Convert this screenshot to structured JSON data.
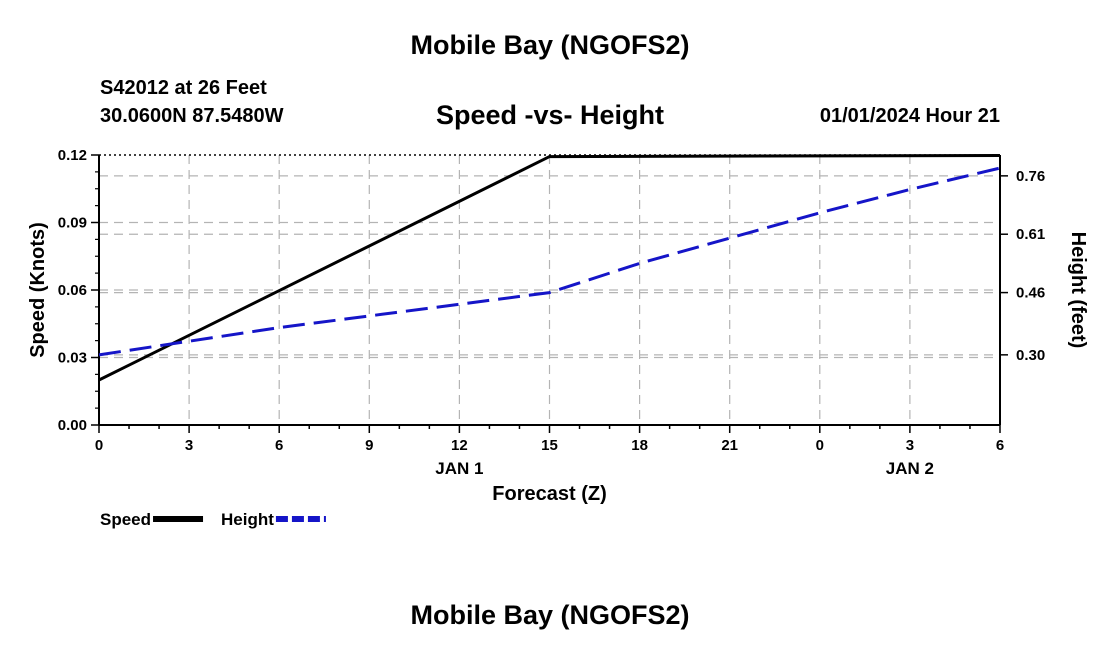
{
  "header": {
    "title": "Mobile Bay (NGOFS2)",
    "station": "S42012 at 26 Feet",
    "coords": "30.0600N  87.5480W",
    "subtitle": "Speed -vs- Height",
    "datetime": "01/01/2024 Hour 21"
  },
  "footer": {
    "title": "Mobile Bay (NGOFS2)"
  },
  "chart_data": {
    "type": "line",
    "title": "Speed -vs- Height",
    "xlabel": "Forecast (Z)",
    "ylabel": "Speed (Knots)",
    "y2label": "Height (feet)",
    "x": [
      0,
      3,
      6,
      9,
      12,
      15,
      18,
      21,
      24,
      27,
      30
    ],
    "x_tick_labels": [
      "0",
      "3",
      "6",
      "9",
      "12",
      "15",
      "18",
      "21",
      "0",
      "3",
      "6"
    ],
    "date_labels": [
      {
        "label": "JAN 1",
        "at_x": 12
      },
      {
        "label": "JAN 2",
        "at_x": 27
      }
    ],
    "xlim": [
      0,
      30
    ],
    "ylim": [
      0,
      0.12
    ],
    "yticks": [
      "0.00",
      "0.03",
      "0.06",
      "0.09",
      "0.12"
    ],
    "y2lim": [
      0.1197,
      0.8136
    ],
    "y2ticks": [
      "0.30",
      "0.46",
      "0.61",
      "0.76"
    ],
    "grid": true,
    "legend_position": "bottom-left",
    "series": [
      {
        "name": "Speed",
        "axis": "left",
        "color": "#000000",
        "style": "solid",
        "x": [
          0,
          15,
          30
        ],
        "values": [
          0.02,
          0.1193,
          0.1198
        ]
      },
      {
        "name": "Height",
        "axis": "right",
        "color": "#1515c8",
        "style": "dashed",
        "x": [
          0,
          3,
          6,
          9,
          12,
          15,
          18,
          21,
          24,
          27,
          30
        ],
        "values": [
          0.3,
          0.335,
          0.37,
          0.4,
          0.43,
          0.46,
          0.535,
          0.6,
          0.665,
          0.725,
          0.78
        ]
      }
    ]
  }
}
